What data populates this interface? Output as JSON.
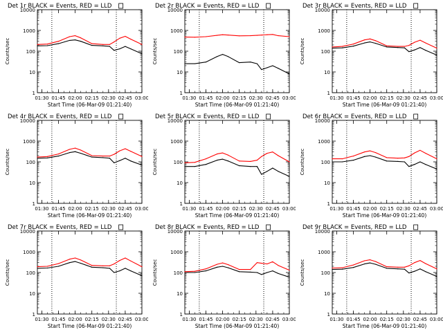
{
  "x_ticks": [
    "01:30",
    "01:45",
    "02:00",
    "02:15",
    "02:30",
    "02:45",
    "03:00"
  ],
  "y_ticks": [
    "1",
    "10",
    "100",
    "1000",
    "10000"
  ],
  "ylabel": "Counts/sec",
  "xlabel": "Start Time (06-Mar-09 01:21:40)",
  "colors": {
    "events": "#000000",
    "lld": "#ff0000"
  },
  "chart_data": [
    {
      "type": "line",
      "title": "Det 1r BLACK = Events, RED = LLD",
      "x": [
        "01:26",
        "01:35",
        "01:45",
        "01:55",
        "02:00",
        "02:05",
        "02:15",
        "02:25",
        "02:31",
        "02:35",
        "02:40",
        "02:45",
        "02:50",
        "03:00"
      ],
      "xlim": [
        "01:26",
        "03:00"
      ],
      "ylim": [
        1,
        10000
      ],
      "yscale": "log",
      "vlines": [
        "01:39",
        "02:37"
      ],
      "series": [
        {
          "name": "BLACK = Events",
          "values": [
            180,
            185,
            230,
            330,
            350,
            300,
            190,
            180,
            170,
            110,
            130,
            170,
            130,
            75
          ]
        },
        {
          "name": "RED = LLD",
          "values": [
            210,
            220,
            300,
            500,
            560,
            440,
            230,
            210,
            210,
            280,
            420,
            520,
            380,
            210
          ]
        }
      ]
    },
    {
      "type": "line",
      "title": "Det 2r BLACK = Events, RED = LLD",
      "x": [
        "01:26",
        "01:35",
        "01:45",
        "01:55",
        "02:00",
        "02:05",
        "02:15",
        "02:25",
        "02:31",
        "02:35",
        "02:40",
        "02:45",
        "02:50",
        "03:00"
      ],
      "xlim": [
        "01:26",
        "03:00"
      ],
      "ylim": [
        1,
        10000
      ],
      "yscale": "log",
      "vlines": [
        "01:39",
        "02:37"
      ],
      "series": [
        {
          "name": "BLACK = Events",
          "values": [
            25,
            25,
            30,
            55,
            70,
            55,
            28,
            30,
            25,
            13,
            16,
            20,
            15,
            8
          ]
        },
        {
          "name": "RED = LLD",
          "values": [
            480,
            470,
            500,
            580,
            620,
            600,
            550,
            560,
            580,
            600,
            620,
            640,
            560,
            500
          ]
        }
      ]
    },
    {
      "type": "line",
      "title": "Det 3r BLACK = Events, RED = LLD",
      "x": [
        "01:26",
        "01:35",
        "01:45",
        "01:55",
        "02:00",
        "02:05",
        "02:15",
        "02:25",
        "02:31",
        "02:35",
        "02:40",
        "02:45",
        "02:50",
        "03:00"
      ],
      "xlim": [
        "01:26",
        "03:00"
      ],
      "ylim": [
        1,
        10000
      ],
      "yscale": "log",
      "vlines": [
        "01:39",
        "02:37"
      ],
      "series": [
        {
          "name": "BLACK = Events",
          "values": [
            140,
            145,
            175,
            250,
            280,
            240,
            160,
            150,
            145,
            95,
            115,
            150,
            110,
            65
          ]
        },
        {
          "name": "RED = LLD",
          "values": [
            160,
            170,
            220,
            350,
            390,
            320,
            180,
            170,
            170,
            190,
            270,
            340,
            250,
            140
          ]
        }
      ]
    },
    {
      "type": "line",
      "title": "Det 4r BLACK = Events, RED = LLD",
      "x": [
        "01:26",
        "01:35",
        "01:45",
        "01:55",
        "02:00",
        "02:05",
        "02:15",
        "02:25",
        "02:31",
        "02:35",
        "02:40",
        "02:45",
        "02:50",
        "03:00"
      ],
      "xlim": [
        "01:26",
        "03:00"
      ],
      "ylim": [
        1,
        10000
      ],
      "yscale": "log",
      "vlines": [
        "01:39",
        "02:37"
      ],
      "series": [
        {
          "name": "BLACK = Events",
          "values": [
            150,
            155,
            190,
            280,
            310,
            260,
            170,
            160,
            150,
            90,
            115,
            150,
            110,
            70
          ]
        },
        {
          "name": "RED = LLD",
          "values": [
            170,
            180,
            240,
            400,
            460,
            370,
            200,
            190,
            190,
            230,
            340,
            430,
            320,
            180
          ]
        }
      ]
    },
    {
      "type": "line",
      "title": "Det 5r BLACK = Events, RED = LLD",
      "x": [
        "01:26",
        "01:35",
        "01:45",
        "01:55",
        "02:00",
        "02:05",
        "02:15",
        "02:25",
        "02:31",
        "02:35",
        "02:40",
        "02:45",
        "02:50",
        "03:00"
      ],
      "xlim": [
        "01:26",
        "03:00"
      ],
      "ylim": [
        1,
        10000
      ],
      "yscale": "log",
      "vlines": [
        "01:39",
        "02:37"
      ],
      "series": [
        {
          "name": "BLACK = Events",
          "values": [
            60,
            60,
            75,
            120,
            135,
            110,
            65,
            60,
            60,
            25,
            35,
            50,
            35,
            20
          ]
        },
        {
          "name": "RED = LLD",
          "values": [
            90,
            95,
            140,
            240,
            270,
            210,
            110,
            105,
            120,
            180,
            260,
            300,
            200,
            100
          ]
        }
      ]
    },
    {
      "type": "line",
      "title": "Det 6r BLACK = Events, RED = LLD",
      "x": [
        "01:26",
        "01:35",
        "01:45",
        "01:55",
        "02:00",
        "02:05",
        "02:15",
        "02:25",
        "02:31",
        "02:35",
        "02:40",
        "02:45",
        "02:50",
        "03:00"
      ],
      "xlim": [
        "01:26",
        "03:00"
      ],
      "ylim": [
        1,
        10000
      ],
      "yscale": "log",
      "vlines": [
        "01:39",
        "02:37"
      ],
      "series": [
        {
          "name": "BLACK = Events",
          "values": [
            100,
            100,
            120,
            180,
            200,
            170,
            110,
            105,
            100,
            60,
            75,
            100,
            75,
            45
          ]
        },
        {
          "name": "RED = LLD",
          "values": [
            140,
            140,
            190,
            300,
            340,
            280,
            160,
            150,
            155,
            180,
            270,
            360,
            260,
            140
          ]
        }
      ]
    },
    {
      "type": "line",
      "title": "Det 7r BLACK = Events, RED = LLD",
      "x": [
        "01:26",
        "01:35",
        "01:45",
        "01:55",
        "02:00",
        "02:05",
        "02:15",
        "02:25",
        "02:31",
        "02:35",
        "02:40",
        "02:45",
        "02:50",
        "03:00"
      ],
      "xlim": [
        "01:26",
        "03:00"
      ],
      "ylim": [
        1,
        10000
      ],
      "yscale": "log",
      "vlines": [
        "01:39",
        "02:37"
      ],
      "series": [
        {
          "name": "BLACK = Events",
          "values": [
            160,
            165,
            200,
            300,
            340,
            280,
            180,
            170,
            160,
            100,
            120,
            160,
            120,
            70
          ]
        },
        {
          "name": "RED = LLD",
          "values": [
            190,
            200,
            270,
            440,
            500,
            400,
            220,
            210,
            210,
            260,
            380,
            500,
            360,
            190
          ]
        }
      ]
    },
    {
      "type": "line",
      "title": "Det 8r BLACK = Events, RED = LLD",
      "x": [
        "01:26",
        "01:35",
        "01:45",
        "01:55",
        "02:00",
        "02:05",
        "02:15",
        "02:25",
        "02:31",
        "02:35",
        "02:40",
        "02:45",
        "02:50",
        "03:00"
      ],
      "xlim": [
        "01:26",
        "03:00"
      ],
      "ylim": [
        1,
        10000
      ],
      "yscale": "log",
      "vlines": [
        "01:39",
        "02:37"
      ],
      "series": [
        {
          "name": "BLACK = Events",
          "values": [
            100,
            100,
            120,
            180,
            200,
            170,
            110,
            105,
            100,
            80,
            100,
            120,
            90,
            60
          ]
        },
        {
          "name": "RED = LLD",
          "values": [
            110,
            115,
            150,
            250,
            290,
            240,
            140,
            140,
            300,
            280,
            260,
            330,
            220,
            130
          ]
        }
      ]
    },
    {
      "type": "line",
      "title": "Det 9r BLACK = Events, RED = LLD",
      "x": [
        "01:26",
        "01:35",
        "01:45",
        "01:55",
        "02:00",
        "02:05",
        "02:15",
        "02:25",
        "02:31",
        "02:35",
        "02:40",
        "02:45",
        "02:50",
        "03:00"
      ],
      "xlim": [
        "01:26",
        "03:00"
      ],
      "ylim": [
        1,
        10000
      ],
      "yscale": "log",
      "vlines": [
        "01:39",
        "02:37"
      ],
      "series": [
        {
          "name": "BLACK = Events",
          "values": [
            140,
            145,
            175,
            260,
            290,
            250,
            160,
            150,
            145,
            95,
            115,
            150,
            110,
            65
          ]
        },
        {
          "name": "RED = LLD",
          "values": [
            165,
            170,
            230,
            370,
            410,
            340,
            190,
            180,
            180,
            210,
            300,
            380,
            270,
            150
          ]
        }
      ]
    }
  ]
}
